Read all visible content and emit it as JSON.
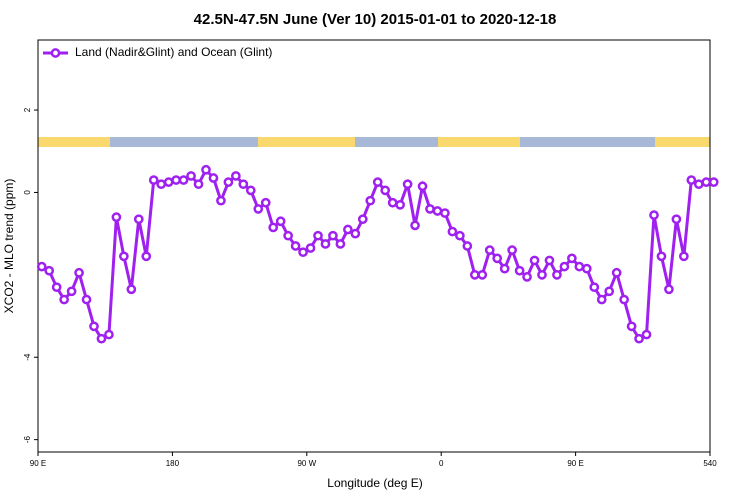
{
  "chart_data": {
    "type": "line",
    "title": "42.5N-47.5N June (Ver 10)   2015-01-01 to 2020-12-18",
    "x_label": "Longitude (deg E)",
    "y_label": "XCO2 - MLO trend (ppm)",
    "xlim": [
      90,
      540
    ],
    "ylim": [
      -6.3,
      3.7
    ],
    "xticks": [
      {
        "value": 90,
        "label": "90 E"
      },
      180,
      {
        "value": 270,
        "label": "90 W"
      },
      {
        "value": 360,
        "label": "0"
      },
      {
        "value": 450,
        "label": "90 E"
      },
      540
    ],
    "yticks": [
      -6,
      -4,
      0,
      2
    ],
    "legend": "top-left",
    "x": [
      92.5,
      97.5,
      102.5,
      107.5,
      112.5,
      117.5,
      122.5,
      127.5,
      132.5,
      137.5,
      142.5,
      147.5,
      152.5,
      157.5,
      162.5,
      167.5,
      172.5,
      177.5,
      182.5,
      187.5,
      192.5,
      197.5,
      202.5,
      207.5,
      212.5,
      217.5,
      222.5,
      227.5,
      232.5,
      237.5,
      242.5,
      247.5,
      252.5,
      257.5,
      262.5,
      267.5,
      272.5,
      277.5,
      282.5,
      287.5,
      292.5,
      297.5,
      302.5,
      307.5,
      312.5,
      317.5,
      322.5,
      327.5,
      332.5,
      337.5,
      342.5,
      347.5,
      352.5,
      357.5,
      362.5,
      367.5,
      372.5,
      377.5,
      382.5,
      387.5,
      392.5,
      397.5,
      402.5,
      407.5,
      412.5,
      417.5,
      422.5,
      427.5,
      432.5,
      437.5,
      442.5,
      447.5,
      452.5,
      457.5,
      462.5,
      467.5,
      472.5,
      477.5,
      482.5,
      487.5,
      492.5,
      497.5,
      502.5,
      507.5,
      512.5,
      517.5,
      522.5,
      527.5,
      532.5,
      537.5,
      542.5
    ],
    "series": [
      {
        "name": "Land (Nadir&Glint) and Ocean (Glint)",
        "color": "#a020f0",
        "values": [
          -1.8,
          -1.9,
          -2.3,
          -2.6,
          -2.4,
          -1.95,
          -2.6,
          -3.25,
          -3.55,
          -3.45,
          -0.6,
          -1.55,
          -2.35,
          -0.65,
          -1.55,
          0.3,
          0.2,
          0.25,
          0.3,
          0.3,
          0.4,
          0.2,
          0.55,
          0.35,
          -0.2,
          0.25,
          0.4,
          0.2,
          0.05,
          -0.4,
          -0.25,
          -0.85,
          -0.7,
          -1.05,
          -1.3,
          -1.45,
          -1.35,
          -1.05,
          -1.25,
          -1.05,
          -1.25,
          -0.9,
          -1.0,
          -0.65,
          -0.2,
          0.25,
          0.05,
          -0.25,
          -0.3,
          0.2,
          -0.8,
          0.15,
          -0.4,
          -0.45,
          -0.5,
          -0.95,
          -1.05,
          -1.3,
          -2.0,
          -2.0,
          -1.4,
          -1.6,
          -1.85,
          -1.4,
          -1.9,
          -2.05,
          -1.65,
          -2.0,
          -1.65,
          -2.0,
          -1.8,
          -1.6,
          -1.8,
          -1.85,
          -2.3,
          -2.6,
          -2.4,
          -1.95,
          -2.6,
          -3.25,
          -3.55,
          -3.45,
          -0.55,
          -1.55,
          -2.35,
          -0.65,
          -1.55,
          0.3,
          0.2,
          0.25,
          0.25
        ]
      }
    ]
  }
}
